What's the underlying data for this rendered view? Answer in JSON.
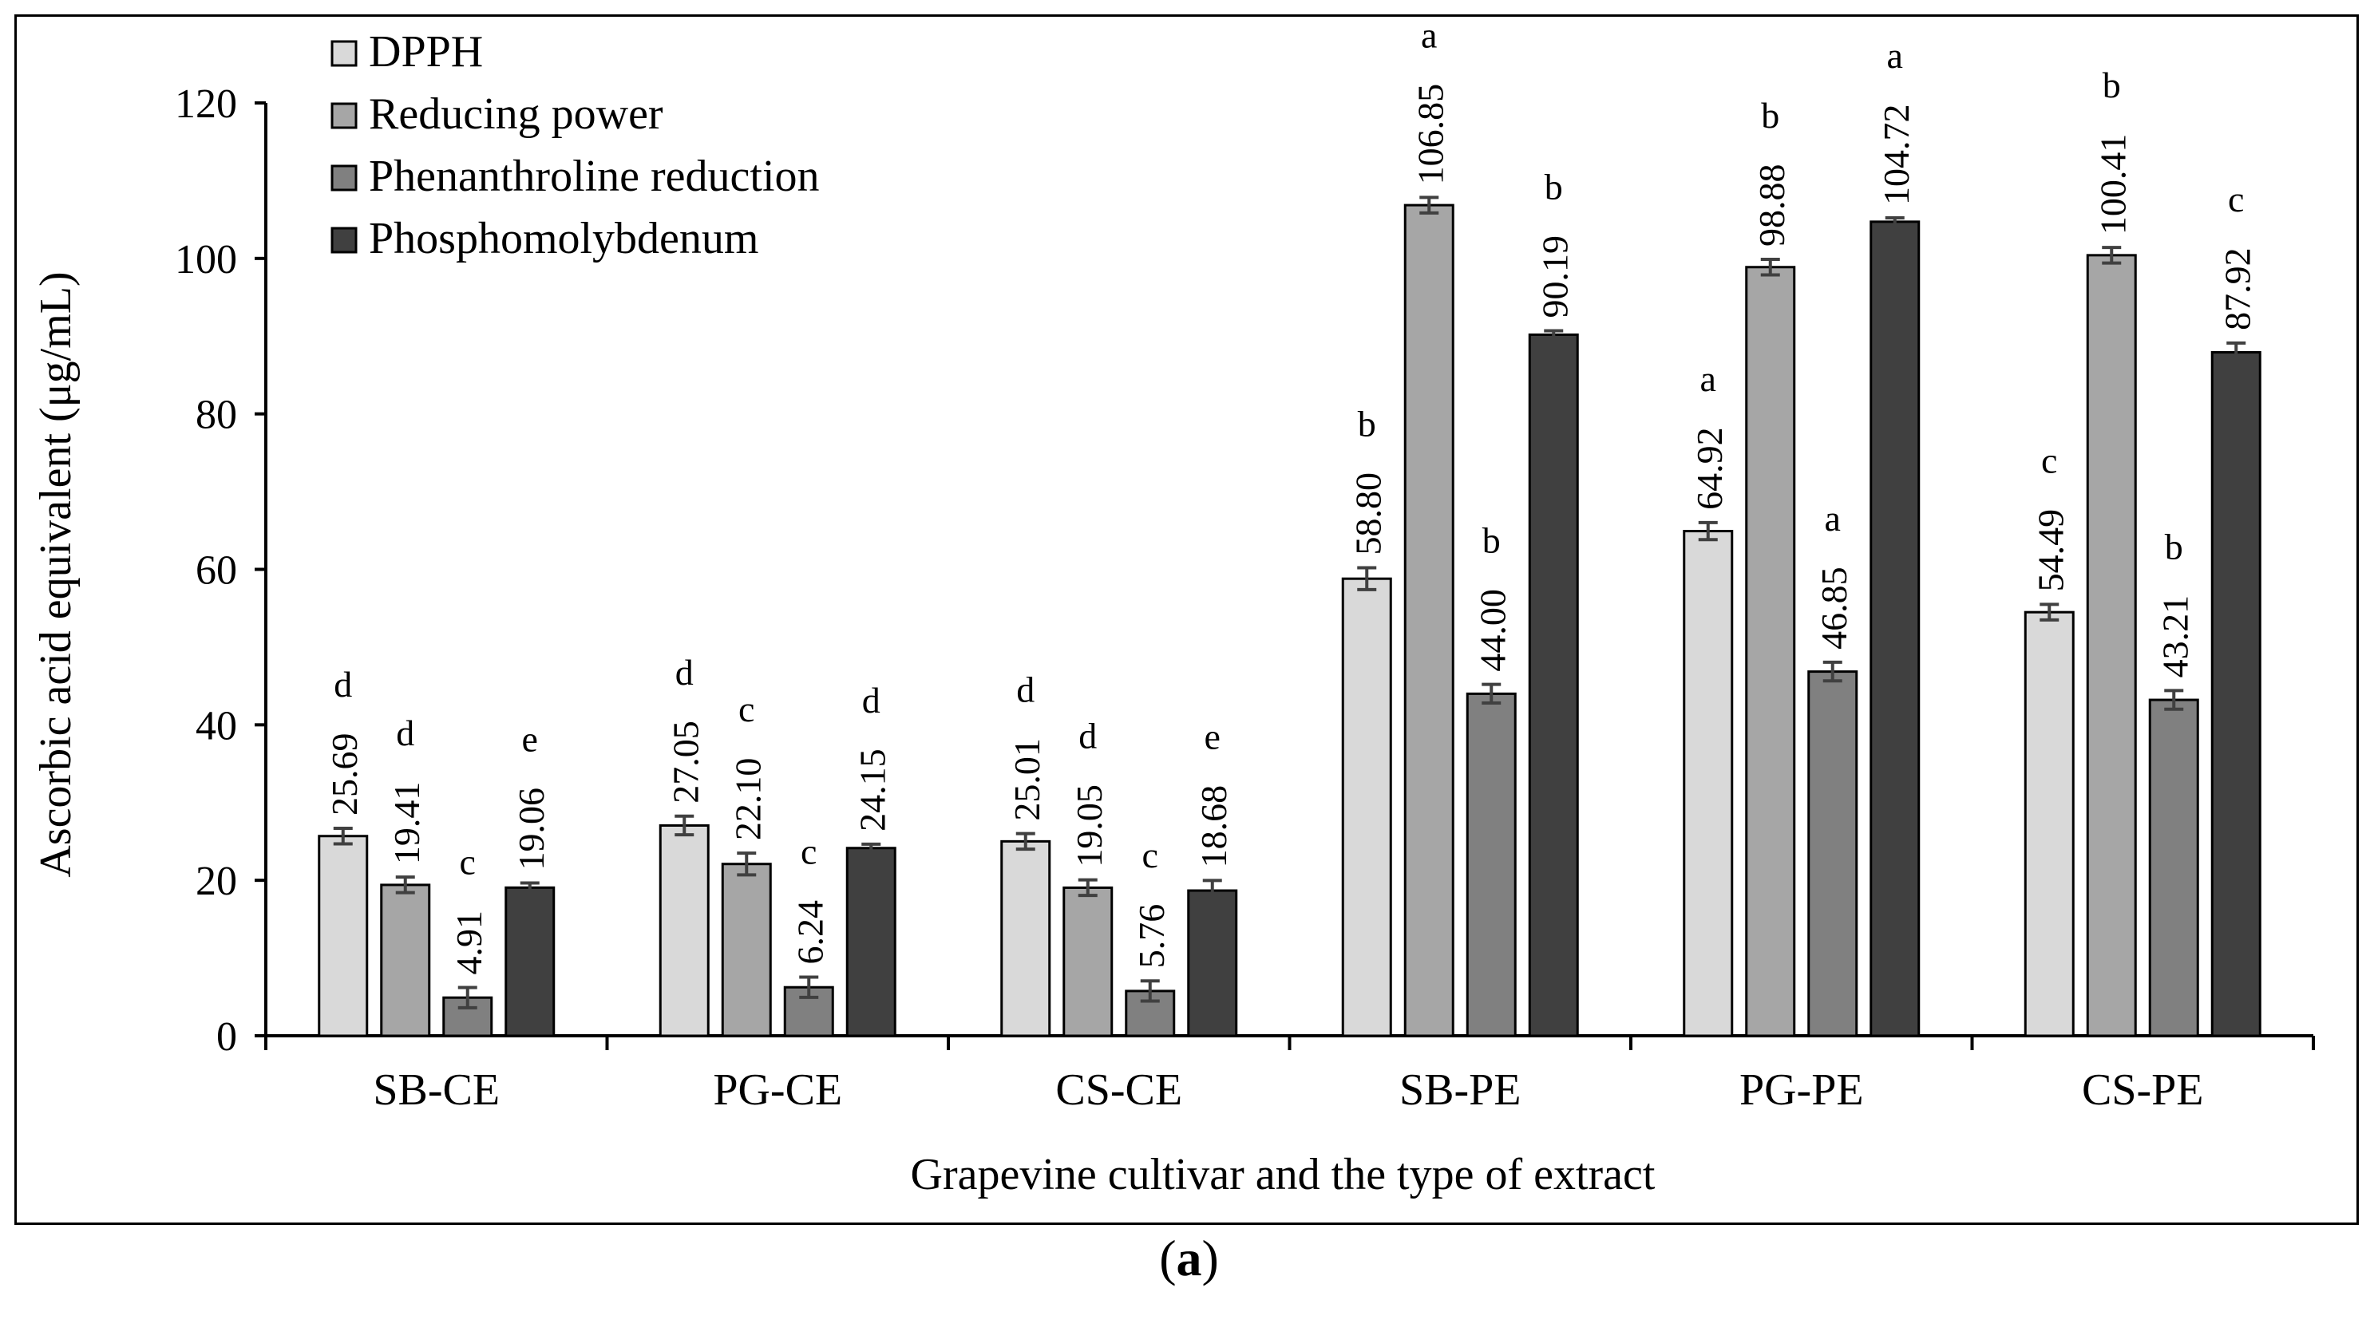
{
  "chart_data": {
    "type": "bar",
    "categories": [
      "SB-CE",
      "PG-CE",
      "CS-CE",
      "SB-PE",
      "PG-PE",
      "CS-PE"
    ],
    "xlabel": "Grapevine cultivar and the type of extract",
    "ylabel": "Ascorbic acid equivalent (μg/mL)",
    "ylim": [
      0,
      120
    ],
    "yticks": [
      0,
      20,
      40,
      60,
      80,
      100,
      120
    ],
    "legend_position": "top-left",
    "grid": false,
    "series": [
      {
        "name": "DPPH",
        "color": "#d9d9d9",
        "values": [
          25.69,
          27.05,
          25.01,
          58.8,
          64.92,
          54.49
        ],
        "labels": [
          "25.69",
          "27.05",
          "25.01",
          "58.80",
          "64.92",
          "54.49"
        ],
        "errors": [
          1.0,
          1.2,
          1.0,
          1.4,
          1.1,
          1.0
        ],
        "letters": [
          "d",
          "d",
          "d",
          "b",
          "a",
          "c"
        ]
      },
      {
        "name": "Reducing power",
        "color": "#a6a6a6",
        "values": [
          19.41,
          22.1,
          19.05,
          106.85,
          98.88,
          100.41
        ],
        "labels": [
          "19.41",
          "22.10",
          "19.05",
          "106.85",
          "98.88",
          "100.41"
        ],
        "errors": [
          1.0,
          1.4,
          1.0,
          1.0,
          1.0,
          1.0
        ],
        "letters": [
          "d",
          "c",
          "d",
          "a",
          "b",
          "b"
        ]
      },
      {
        "name": "Phenanthroline reduction",
        "color": "#808080",
        "values": [
          4.91,
          6.24,
          5.76,
          44.0,
          46.85,
          43.21
        ],
        "labels": [
          "4.91",
          "6.24",
          "5.76",
          "44.00",
          "46.85",
          "43.21"
        ],
        "errors": [
          1.3,
          1.3,
          1.3,
          1.2,
          1.2,
          1.2
        ],
        "letters": [
          "c",
          "c",
          "c",
          "b",
          "a",
          "b"
        ]
      },
      {
        "name": "Phosphomolybdenum",
        "color": "#404040",
        "values": [
          19.06,
          24.15,
          18.68,
          90.19,
          104.72,
          87.92
        ],
        "labels": [
          "19.06",
          "24.15",
          "18.68",
          "90.19",
          "104.72",
          "87.92"
        ],
        "errors": [
          0.6,
          0.5,
          1.3,
          0.5,
          0.5,
          1.2
        ],
        "letters": [
          "e",
          "d",
          "e",
          "b",
          "a",
          "c"
        ]
      }
    ]
  },
  "caption": {
    "open": "(",
    "letter": "a",
    "close": ")"
  }
}
